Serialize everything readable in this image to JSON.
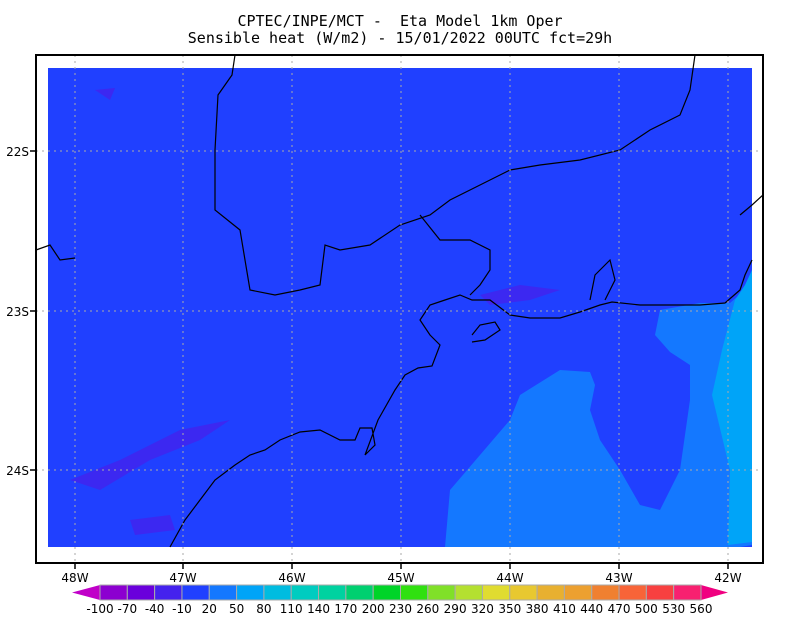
{
  "header": {
    "line1": "CPTEC/INPE/MCT -  Eta Model 1km Oper",
    "line2": "Sensible heat (W/m2) - 15/01/2022 00UTC fct=29h"
  },
  "map": {
    "field": "Sensible heat",
    "units": "W/m2",
    "lon_labels": [
      "48W",
      "47W",
      "46W",
      "45W",
      "44W",
      "43W",
      "42W"
    ],
    "lat_labels": [
      "22S",
      "23S",
      "24S"
    ],
    "background_color": "#2040ff",
    "grid": true
  },
  "colorbar": {
    "labels": [
      "-100",
      "-70",
      "-40",
      "-10",
      "20",
      "50",
      "80",
      "110",
      "140",
      "170",
      "200",
      "230",
      "260",
      "290",
      "320",
      "350",
      "380",
      "410",
      "440",
      "470",
      "500",
      "530",
      "560"
    ],
    "colors": [
      "#8c00d0",
      "#6a00dc",
      "#4422ee",
      "#2040ff",
      "#1478ff",
      "#00a4f8",
      "#00bce0",
      "#00ccc0",
      "#00d2a0",
      "#00d070",
      "#00d428",
      "#30e010",
      "#80e028",
      "#b4e030",
      "#e0dc30",
      "#e8c830",
      "#e8b030",
      "#eca030",
      "#f08030",
      "#f86438",
      "#f84040",
      "#f82070"
    ],
    "under_color": "#c000c8",
    "over_color": "#f00080"
  }
}
